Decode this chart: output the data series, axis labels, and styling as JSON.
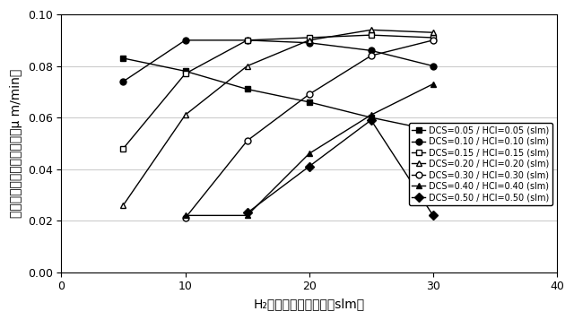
{
  "title": "",
  "xlabel": "H₂キャリアガス流量（slm）",
  "ylabel": "エピタキシャル成長速度（μ m/min）",
  "xlim": [
    0,
    40
  ],
  "ylim": [
    0.0,
    0.1
  ],
  "xticks": [
    0,
    10,
    20,
    30,
    40
  ],
  "yticks": [
    0.0,
    0.02,
    0.04,
    0.06,
    0.08,
    0.1
  ],
  "series": [
    {
      "label": "DCS=0.05 / HCl=0.05 (slm)",
      "x": [
        5,
        10,
        15,
        20,
        25,
        30
      ],
      "y": [
        0.083,
        0.078,
        0.071,
        0.066,
        0.06,
        0.055
      ],
      "marker": "s",
      "fillstyle": "full",
      "color": "black",
      "linestyle": "-"
    },
    {
      "label": "DCS=0.10 / HCl=0.10 (slm)",
      "x": [
        5,
        10,
        15,
        20,
        25,
        30
      ],
      "y": [
        0.074,
        0.09,
        0.09,
        0.089,
        0.086,
        0.08
      ],
      "marker": "o",
      "fillstyle": "full",
      "color": "black",
      "linestyle": "-"
    },
    {
      "label": "DCS=0.15 / HCl=0.15 (slm)",
      "x": [
        5,
        10,
        15,
        20,
        25,
        30
      ],
      "y": [
        0.048,
        0.077,
        0.09,
        0.091,
        0.092,
        0.091
      ],
      "marker": "s",
      "fillstyle": "none",
      "color": "black",
      "linestyle": "-"
    },
    {
      "label": "DCS=0.20 / HCl=0.20 (slm)",
      "x": [
        5,
        10,
        15,
        20,
        25,
        30
      ],
      "y": [
        0.026,
        0.061,
        0.08,
        0.09,
        0.094,
        0.093
      ],
      "marker": "^",
      "fillstyle": "none",
      "color": "black",
      "linestyle": "-"
    },
    {
      "label": "DCS=0.30 / HCl=0.30 (slm)",
      "x": [
        10,
        15,
        20,
        25,
        30
      ],
      "y": [
        0.021,
        0.051,
        0.069,
        0.084,
        0.09
      ],
      "marker": "o",
      "fillstyle": "none",
      "color": "black",
      "linestyle": "-"
    },
    {
      "label": "DCS=0.40 / HCl=0.40 (slm)",
      "x": [
        10,
        15,
        20,
        25,
        30
      ],
      "y": [
        0.022,
        0.022,
        0.046,
        0.061,
        0.073
      ],
      "marker": "^",
      "fillstyle": "full",
      "color": "black",
      "linestyle": "-"
    },
    {
      "label": "DCS=0.50 / HCl=0.50 (slm)",
      "x": [
        15,
        20,
        25,
        30
      ],
      "y": [
        0.023,
        0.041,
        0.059,
        0.022
      ],
      "marker": "D",
      "fillstyle": "full",
      "color": "black",
      "linestyle": "-"
    }
  ],
  "grid_color": "#cccccc",
  "legend_fontsize": 7.0,
  "tick_fontsize": 9,
  "label_fontsize": 10
}
